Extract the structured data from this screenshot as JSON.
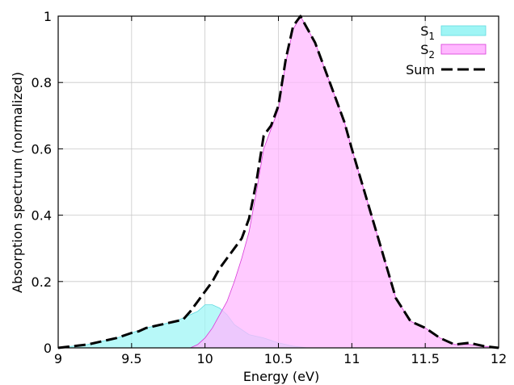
{
  "chart_data": {
    "type": "area",
    "xlabel": "Energy (eV)",
    "ylabel": "Absorption spectrum (normalized)",
    "xlim": [
      9,
      12
    ],
    "ylim": [
      0,
      1
    ],
    "xticks": [
      9,
      9.5,
      10,
      10.5,
      11,
      11.5,
      12
    ],
    "xtick_labels": [
      "9",
      "9.5",
      "10",
      "10.5",
      "11",
      "11.5",
      "12"
    ],
    "yticks": [
      0,
      0.2,
      0.4,
      0.6,
      0.8,
      1
    ],
    "ytick_labels": [
      "0",
      "0.2",
      "0.4",
      "0.6",
      "0.8",
      "1"
    ],
    "grid": true,
    "legend_position": "top-right",
    "series": [
      {
        "name": "S1",
        "label_main": "S",
        "label_sub": "1",
        "style": "filled-area",
        "fill": "#9ff5f5",
        "stroke": "#5fd9e0",
        "x": [
          9.0,
          9.1,
          9.2,
          9.3,
          9.4,
          9.5,
          9.6,
          9.7,
          9.8,
          9.9,
          9.95,
          10.0,
          10.05,
          10.1,
          10.15,
          10.2,
          10.3,
          10.4,
          10.5,
          10.6,
          10.7,
          12.0
        ],
        "y": [
          0.0,
          0.005,
          0.01,
          0.02,
          0.03,
          0.045,
          0.06,
          0.07,
          0.08,
          0.1,
          0.11,
          0.13,
          0.13,
          0.12,
          0.1,
          0.07,
          0.04,
          0.03,
          0.015,
          0.005,
          0.0,
          0.0
        ]
      },
      {
        "name": "S2",
        "label_main": "S",
        "label_sub": "2",
        "style": "filled-area",
        "fill": "#ffb8ff",
        "stroke": "#d83ad8",
        "x": [
          9.0,
          9.9,
          9.95,
          10.0,
          10.05,
          10.1,
          10.15,
          10.2,
          10.25,
          10.3,
          10.35,
          10.4,
          10.45,
          10.5,
          10.55,
          10.6,
          10.65,
          10.7,
          10.75,
          10.8,
          10.85,
          10.9,
          10.95,
          11.0,
          11.1,
          11.2,
          11.3,
          11.4,
          11.5,
          11.6,
          11.7,
          11.8,
          12.0
        ],
        "y": [
          0.0,
          0.0,
          0.01,
          0.03,
          0.06,
          0.1,
          0.14,
          0.2,
          0.27,
          0.35,
          0.47,
          0.6,
          0.66,
          0.72,
          0.86,
          0.96,
          1.0,
          0.96,
          0.92,
          0.86,
          0.8,
          0.74,
          0.68,
          0.6,
          0.45,
          0.3,
          0.15,
          0.08,
          0.06,
          0.03,
          0.01,
          0.01,
          0.0
        ]
      },
      {
        "name": "Sum",
        "label_main": "Sum",
        "label_sub": "",
        "style": "dashed-line",
        "stroke": "#000000",
        "x": [
          9.0,
          9.1,
          9.2,
          9.3,
          9.4,
          9.5,
          9.55,
          9.6,
          9.7,
          9.8,
          9.85,
          9.9,
          9.95,
          10.0,
          10.05,
          10.1,
          10.15,
          10.2,
          10.25,
          10.3,
          10.35,
          10.4,
          10.45,
          10.5,
          10.55,
          10.6,
          10.65,
          10.7,
          10.75,
          10.8,
          10.85,
          10.9,
          10.95,
          11.0,
          11.1,
          11.2,
          11.3,
          11.4,
          11.5,
          11.6,
          11.7,
          11.8,
          11.9,
          12.0
        ],
        "y": [
          0.0,
          0.005,
          0.01,
          0.02,
          0.03,
          0.045,
          0.05,
          0.06,
          0.07,
          0.08,
          0.085,
          0.11,
          0.14,
          0.17,
          0.2,
          0.24,
          0.27,
          0.3,
          0.33,
          0.39,
          0.5,
          0.64,
          0.67,
          0.73,
          0.87,
          0.97,
          1.0,
          0.96,
          0.92,
          0.86,
          0.8,
          0.74,
          0.68,
          0.6,
          0.45,
          0.3,
          0.15,
          0.08,
          0.06,
          0.03,
          0.01,
          0.015,
          0.005,
          0.0
        ]
      }
    ]
  }
}
